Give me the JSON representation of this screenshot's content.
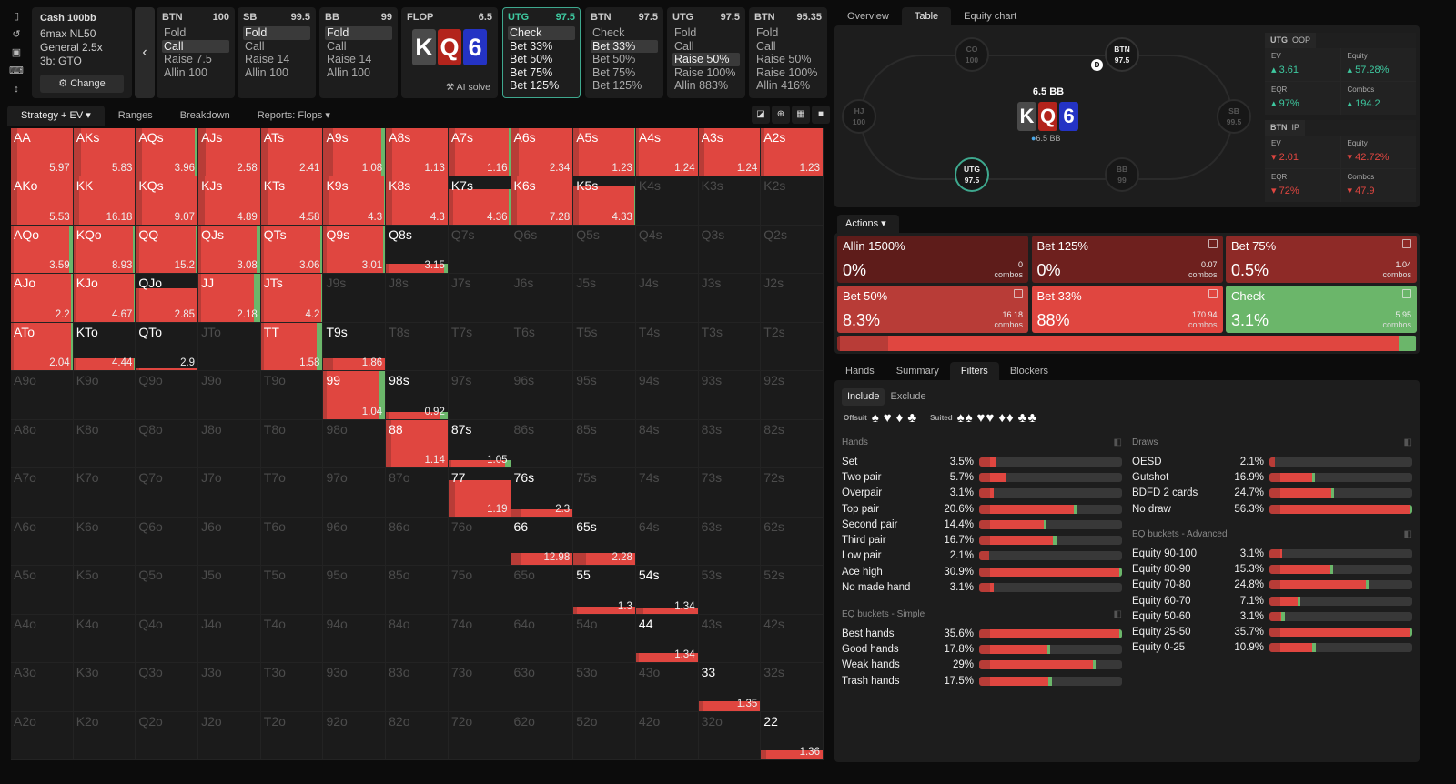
{
  "sidebar_icons": [
    "bookmark-icon",
    "history-icon",
    "save-icon",
    "gamepad-icon",
    "expand-icon"
  ],
  "info": {
    "title": "Cash 100bb",
    "items": [
      "6max NL50",
      "General 2.5x",
      "3b: GTO"
    ],
    "change": "Change"
  },
  "columns": [
    {
      "pos": "BTN",
      "stack": "100",
      "opts": [
        "Fold",
        "Call",
        "Raise 7.5",
        "Allin 100"
      ],
      "sel": 1
    },
    {
      "pos": "SB",
      "stack": "99.5",
      "opts": [
        "Fold",
        "Call",
        "Raise 14",
        "Allin 100"
      ],
      "sel": 0
    },
    {
      "pos": "BB",
      "stack": "99",
      "opts": [
        "Fold",
        "Call",
        "Raise 14",
        "Allin 100"
      ],
      "sel": 0
    },
    {
      "pos": "UTG",
      "stack": "97.5",
      "opts": [
        "Check",
        "Bet 33%",
        "Bet 50%",
        "Bet 75%",
        "Bet 125%"
      ],
      "sel": 0,
      "active": true
    },
    {
      "pos": "BTN",
      "stack": "97.5",
      "opts": [
        "Check",
        "Bet 33%",
        "Bet 50%",
        "Bet 75%",
        "Bet 125%"
      ],
      "sel": 1
    },
    {
      "pos": "UTG",
      "stack": "97.5",
      "opts": [
        "Fold",
        "Call",
        "Raise 50%",
        "Raise 100%",
        "Allin 883%"
      ],
      "sel": 2
    },
    {
      "pos": "BTN",
      "stack": "95.35",
      "opts": [
        "Fold",
        "Call",
        "Raise 50%",
        "Raise 100%",
        "Allin 416%"
      ],
      "sel": -1
    }
  ],
  "flop": {
    "label": "FLOP",
    "pot": "6.5",
    "cards": [
      {
        "r": "K",
        "color": "#4a4a4a"
      },
      {
        "r": "Q",
        "color": "#b3241c"
      },
      {
        "r": "6",
        "color": "#2433c4"
      }
    ],
    "ai": "AI solve"
  },
  "tabs": [
    {
      "label": "Strategy + EV ▾",
      "on": true
    },
    {
      "label": "Ranges"
    },
    {
      "label": "Breakdown"
    },
    {
      "label": "Reports: Flops ▾"
    }
  ],
  "colors": {
    "bet125": "#6e201e",
    "bet75": "#8e2a27",
    "bet50": "#b83c37",
    "bet33": "#e04640",
    "check": "#6bb66a",
    "allin": "#5e1c1a",
    "accent": "#3ea88e"
  },
  "grid": {
    "ranks": [
      "A",
      "K",
      "Q",
      "J",
      "T",
      "9",
      "8",
      "7",
      "6",
      "5",
      "4",
      "3",
      "2"
    ],
    "active": {
      "AA": {
        "ev": "5.97",
        "f": 1,
        "d": 0.1,
        "c": 0
      },
      "AKs": {
        "ev": "5.83",
        "f": 1,
        "d": 0.12,
        "c": 0
      },
      "AQs": {
        "ev": "3.96",
        "f": 1,
        "d": 0.1,
        "c": 0.04
      },
      "AJs": {
        "ev": "2.58",
        "f": 1,
        "d": 0.12,
        "c": 0
      },
      "ATs": {
        "ev": "2.41",
        "f": 1,
        "d": 0.12,
        "c": 0
      },
      "A9s": {
        "ev": "1.08",
        "f": 1,
        "d": 0.15,
        "c": 0.06
      },
      "A8s": {
        "ev": "1.13",
        "f": 1,
        "d": 0.1,
        "c": 0
      },
      "A7s": {
        "ev": "1.16",
        "f": 1,
        "d": 0.1,
        "c": 0.02
      },
      "A6s": {
        "ev": "2.34",
        "f": 1,
        "d": 0.12,
        "c": 0
      },
      "A5s": {
        "ev": "1.23",
        "f": 1,
        "d": 0.08,
        "c": 0.01
      },
      "A4s": {
        "ev": "1.24",
        "f": 1,
        "d": 0.05,
        "c": 0
      },
      "A3s": {
        "ev": "1.24",
        "f": 1,
        "d": 0.1,
        "c": 0
      },
      "A2s": {
        "ev": "1.23",
        "f": 1,
        "d": 0.05,
        "c": 0
      },
      "AKo": {
        "ev": "5.53",
        "f": 1,
        "d": 0.1,
        "c": 0
      },
      "KK": {
        "ev": "16.18",
        "f": 1,
        "d": 0.1,
        "c": 0
      },
      "KQs": {
        "ev": "9.07",
        "f": 1,
        "d": 0.1,
        "c": 0
      },
      "KJs": {
        "ev": "4.89",
        "f": 1,
        "d": 0.1,
        "c": 0
      },
      "KTs": {
        "ev": "4.58",
        "f": 1,
        "d": 0.1,
        "c": 0
      },
      "K9s": {
        "ev": "4.3",
        "f": 1,
        "d": 0.08,
        "c": 0.02
      },
      "K8s": {
        "ev": "4.3",
        "f": 1,
        "d": 0.1,
        "c": 0
      },
      "K7s": {
        "ev": "4.36",
        "f": 0.75,
        "d": 0.08,
        "c": 0.02
      },
      "K6s": {
        "ev": "7.28",
        "f": 1,
        "d": 0.1,
        "c": 0.01
      },
      "K5s": {
        "ev": "4.33",
        "f": 0.8,
        "d": 0.08,
        "c": 0.01
      },
      "AQo": {
        "ev": "3.59",
        "f": 1,
        "d": 0.05,
        "c": 0.05
      },
      "KQo": {
        "ev": "8.93",
        "f": 1,
        "d": 0.05,
        "c": 0.03
      },
      "QQ": {
        "ev": "15.2",
        "f": 1,
        "d": 0.05,
        "c": 0.03
      },
      "QJs": {
        "ev": "3.08",
        "f": 1,
        "d": 0.05,
        "c": 0.05
      },
      "QTs": {
        "ev": "3.06",
        "f": 1,
        "d": 0.05,
        "c": 0.04
      },
      "Q9s": {
        "ev": "3.01",
        "f": 1,
        "d": 0.05,
        "c": 0.03
      },
      "Q8s": {
        "ev": "3.15",
        "f": 0.2,
        "d": 0.05,
        "c": 0.06
      },
      "AJo": {
        "ev": "2.2",
        "f": 1,
        "d": 0.05,
        "c": 0.02
      },
      "KJo": {
        "ev": "4.67",
        "f": 1,
        "d": 0.05,
        "c": 0.02
      },
      "QJo": {
        "ev": "2.85",
        "f": 0.7,
        "d": 0.05,
        "c": 0.02
      },
      "JJ": {
        "ev": "2.18",
        "f": 1,
        "d": 0.05,
        "c": 0.1
      },
      "JTs": {
        "ev": "4.2",
        "f": 1,
        "d": 0.05,
        "c": 0.02
      },
      "ATo": {
        "ev": "2.04",
        "f": 1,
        "d": 0.05,
        "c": 0.02
      },
      "KTo": {
        "ev": "4.44",
        "f": 0.25,
        "d": 0.05,
        "c": 0.02
      },
      "QTo": {
        "ev": "2.9",
        "f": 0.05,
        "d": 0.05,
        "c": 0
      },
      "TT": {
        "ev": "1.58",
        "f": 1,
        "d": 0.05,
        "c": 0.1
      },
      "T9s": {
        "ev": "1.86",
        "f": 0.25,
        "d": 0.15,
        "c": 0
      },
      "99": {
        "ev": "1.04",
        "f": 1,
        "d": 0.05,
        "c": 0.1
      },
      "98s": {
        "ev": "0.92",
        "f": 0.15,
        "d": 0.05,
        "c": 0.12
      },
      "88": {
        "ev": "1.14",
        "f": 1,
        "d": 0.08,
        "c": 0
      },
      "87s": {
        "ev": "1.05",
        "f": 0.15,
        "d": 0.05,
        "c": 0.08
      },
      "77": {
        "ev": "1.19",
        "f": 0.75,
        "d": 0.1,
        "c": 0
      },
      "76s": {
        "ev": "2.3",
        "f": 0.15,
        "d": 0.15,
        "c": 0
      },
      "66": {
        "ev": "12.98",
        "f": 0.25,
        "d": 0.15,
        "c": 0
      },
      "65s": {
        "ev": "2.28",
        "f": 0.25,
        "d": 0.2,
        "c": 0
      },
      "55": {
        "ev": "1.3",
        "f": 0.15,
        "d": 0.05,
        "c": 0
      },
      "54s": {
        "ev": "1.34",
        "f": 0.1,
        "d": 0.12,
        "c": 0
      },
      "44": {
        "ev": "1.34",
        "f": 0.2,
        "d": 0.05,
        "c": 0
      },
      "33": {
        "ev": "1.35",
        "f": 0.2,
        "d": 0.08,
        "c": 0
      },
      "22": {
        "ev": "1.36",
        "f": 0.2,
        "d": 0.08,
        "c": 0
      }
    }
  },
  "right_tabs": [
    {
      "label": "Overview"
    },
    {
      "label": "Table",
      "on": true
    },
    {
      "label": "Equity chart"
    }
  ],
  "table": {
    "pot": "6.5 BB",
    "pot2": "6.5 BB",
    "dealer": "D",
    "seats": [
      {
        "pos": "CO",
        "stack": "100"
      },
      {
        "pos": "BTN",
        "stack": "97.5",
        "lit": true
      },
      {
        "pos": "HJ",
        "stack": "100"
      },
      {
        "pos": "SB",
        "stack": "99.5"
      },
      {
        "pos": "UTG",
        "stack": "97.5",
        "cur": true
      },
      {
        "pos": "BB",
        "stack": "99"
      }
    ],
    "stats": [
      {
        "name": "UTG",
        "tag": "OOP",
        "ev": "3.61",
        "equity": "57.28%",
        "eqr": "97%",
        "combos": "194.2",
        "dir": "up"
      },
      {
        "name": "BTN",
        "tag": "IP",
        "ev": "2.01",
        "equity": "42.72%",
        "eqr": "72%",
        "combos": "47.9",
        "dir": "dn"
      }
    ],
    "labels": {
      "ev": "EV",
      "equity": "Equity",
      "eqr": "EQR",
      "combos": "Combos"
    }
  },
  "actions": {
    "header": "Actions ▾",
    "combos_word": "combos",
    "items": [
      {
        "name": "Allin 1500%",
        "pct": "0%",
        "combos": "0",
        "color": "#5e1c1a",
        "icon": false
      },
      {
        "name": "Bet 125%",
        "pct": "0%",
        "combos": "0.07",
        "color": "#6e201e",
        "icon": true
      },
      {
        "name": "Bet 75%",
        "pct": "0.5%",
        "combos": "1.04",
        "color": "#8e2a27",
        "icon": true
      },
      {
        "name": "Bet 50%",
        "pct": "8.3%",
        "combos": "16.18",
        "color": "#b83c37",
        "icon": true
      },
      {
        "name": "Bet 33%",
        "pct": "88%",
        "combos": "170.94",
        "color": "#e04640",
        "icon": true
      },
      {
        "name": "Check",
        "pct": "3.1%",
        "combos": "5.95",
        "color": "#6bb66a",
        "icon": true
      }
    ],
    "bar": [
      {
        "v": 0.5,
        "color": "#8e2a27"
      },
      {
        "v": 8.3,
        "color": "#b83c37"
      },
      {
        "v": 88,
        "color": "#e04640"
      },
      {
        "v": 3.1,
        "color": "#6bb66a"
      }
    ]
  },
  "bottom_tabs": [
    {
      "label": "Hands"
    },
    {
      "label": "Summary"
    },
    {
      "label": "Filters",
      "on": true
    },
    {
      "label": "Blockers"
    }
  ],
  "filters": {
    "include": "Include",
    "exclude": "Exclude",
    "offsuit": "Offsuit",
    "suited": "Suited",
    "suits": [
      "♠",
      "♥",
      "♦",
      "♣"
    ],
    "groups": [
      {
        "title": "Hands",
        "rows": [
          [
            "Set",
            3.5,
            0
          ],
          [
            "Two pair",
            5.7,
            0
          ],
          [
            "Overpair",
            3.1,
            0
          ],
          [
            "Top pair",
            20.6,
            0.2
          ],
          [
            "Second pair",
            14.4,
            0.5
          ],
          [
            "Third pair",
            16.7,
            1
          ],
          [
            "Low pair",
            2.1,
            0
          ],
          [
            "Ace high",
            30.9,
            0.1
          ],
          [
            "No made hand",
            3.1,
            0
          ]
        ]
      },
      {
        "title": "EQ buckets - Simple",
        "rows": [
          [
            "Best hands",
            35.6,
            0.1
          ],
          [
            "Good hands",
            17.8,
            1
          ],
          [
            "Weak hands",
            29,
            0.4
          ],
          [
            "Trash hands",
            17.5,
            0.2
          ]
        ]
      },
      {
        "title": "Draws",
        "rows": [
          [
            "OESD",
            2.1,
            0
          ],
          [
            "Gutshot",
            16.9,
            0.1
          ],
          [
            "BDFD 2 cards",
            24.7,
            0.3
          ],
          [
            "No draw",
            56.3,
            0.4
          ]
        ]
      },
      {
        "title": "EQ buckets - Advanced",
        "rows": [
          [
            "Equity 90-100",
            3.1,
            0
          ],
          [
            "Equity 80-90",
            15.3,
            0.1
          ],
          [
            "Equity 70-80",
            24.8,
            0.5
          ],
          [
            "Equity 60-70",
            7.1,
            0.3
          ],
          [
            "Equity 50-60",
            3.1,
            0.2
          ],
          [
            "Equity 25-50",
            35.7,
            0.3
          ],
          [
            "Equity 0-25",
            10.9,
            0.2
          ]
        ]
      }
    ]
  }
}
